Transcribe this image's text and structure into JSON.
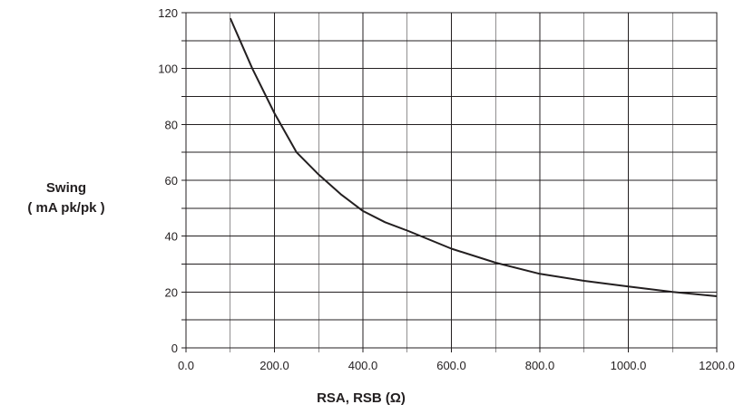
{
  "chart_data": {
    "type": "line",
    "title": "",
    "xlabel": "RSA, RSB (Ω)",
    "ylabel_line1": "Swing",
    "ylabel_line2": "( mA pk/pk )",
    "xlim": [
      0,
      1200
    ],
    "ylim": [
      0,
      120
    ],
    "x_major_step": 100,
    "y_major_step": 10,
    "x_tick_labels": [
      "0.0",
      "200.0",
      "400.0",
      "600.0",
      "800.0",
      "1000.0",
      "1200.0"
    ],
    "y_tick_labels": [
      "0",
      "20",
      "40",
      "60",
      "80",
      "100",
      "120"
    ],
    "grid": true,
    "series": [
      {
        "x": [
          100,
          150,
          200,
          250,
          300,
          350,
          400,
          450,
          500,
          600,
          700,
          800,
          900,
          1000,
          1100,
          1200
        ],
        "values": [
          118,
          100,
          84,
          70,
          62,
          55,
          49,
          45,
          42,
          35.5,
          30.5,
          26.5,
          24,
          22,
          20,
          18.5
        ]
      }
    ],
    "line_color": "#231f20"
  }
}
